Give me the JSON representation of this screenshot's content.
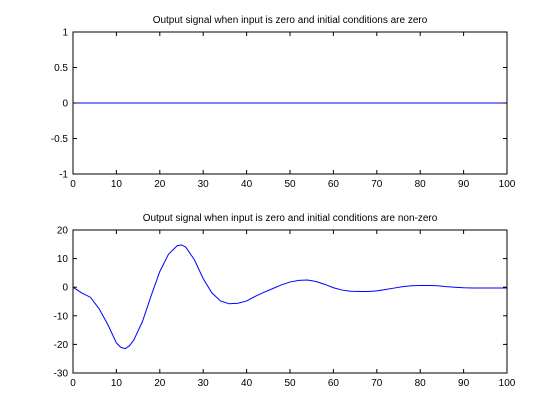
{
  "chart_data": [
    {
      "type": "line",
      "title": "Output signal when input is zero and initial conditions are zero",
      "xlabel": "",
      "ylabel": "",
      "xlim": [
        0,
        100
      ],
      "ylim": [
        -1,
        1
      ],
      "xticks": [
        0,
        10,
        20,
        30,
        40,
        50,
        60,
        70,
        80,
        90,
        100
      ],
      "yticks": [
        -1,
        -0.5,
        0,
        0.5,
        1
      ],
      "ytick_labels": [
        "-1",
        "-0.5",
        "0",
        "0.5",
        "1"
      ],
      "grid": false,
      "series": [
        {
          "color": "#0000ff",
          "x": [
            0,
            100
          ],
          "y": [
            0,
            0
          ]
        }
      ]
    },
    {
      "type": "line",
      "title": "Output signal when input is zero and initial conditions are non-zero",
      "xlabel": "",
      "ylabel": "",
      "xlim": [
        0,
        100
      ],
      "ylim": [
        -30,
        20
      ],
      "xticks": [
        0,
        10,
        20,
        30,
        40,
        50,
        60,
        70,
        80,
        90,
        100
      ],
      "yticks": [
        -30,
        -20,
        -10,
        0,
        10,
        20
      ],
      "ytick_labels": [
        "-30",
        "-20",
        "-10",
        "0",
        "10",
        "20"
      ],
      "grid": false,
      "series": [
        {
          "color": "#0000ff",
          "x": [
            0,
            2,
            4,
            6,
            8,
            10,
            11,
            12,
            13,
            14,
            16,
            18,
            20,
            22,
            24,
            25,
            26,
            28,
            30,
            32,
            34,
            36,
            38,
            40,
            42,
            44,
            46,
            48,
            50,
            52,
            54,
            56,
            58,
            60,
            62,
            64,
            66,
            68,
            70,
            72,
            74,
            76,
            78,
            80,
            82,
            84,
            86,
            88,
            90,
            92,
            94,
            96,
            98,
            100
          ],
          "y": [
            0,
            -2,
            -3.5,
            -7.5,
            -13,
            -19.5,
            -21,
            -21.5,
            -20.5,
            -18.5,
            -12,
            -3,
            5.5,
            11.5,
            14.5,
            14.8,
            14,
            9.5,
            3,
            -2,
            -4.8,
            -5.8,
            -5.6,
            -4.8,
            -3.2,
            -1.8,
            -0.5,
            0.8,
            1.8,
            2.4,
            2.5,
            2,
            1,
            -0.2,
            -1,
            -1.4,
            -1.5,
            -1.5,
            -1.3,
            -0.8,
            -0.3,
            0.2,
            0.5,
            0.6,
            0.6,
            0.5,
            0.2,
            0,
            -0.2,
            -0.3,
            -0.3,
            -0.3,
            -0.3,
            -0.3
          ]
        }
      ]
    }
  ]
}
